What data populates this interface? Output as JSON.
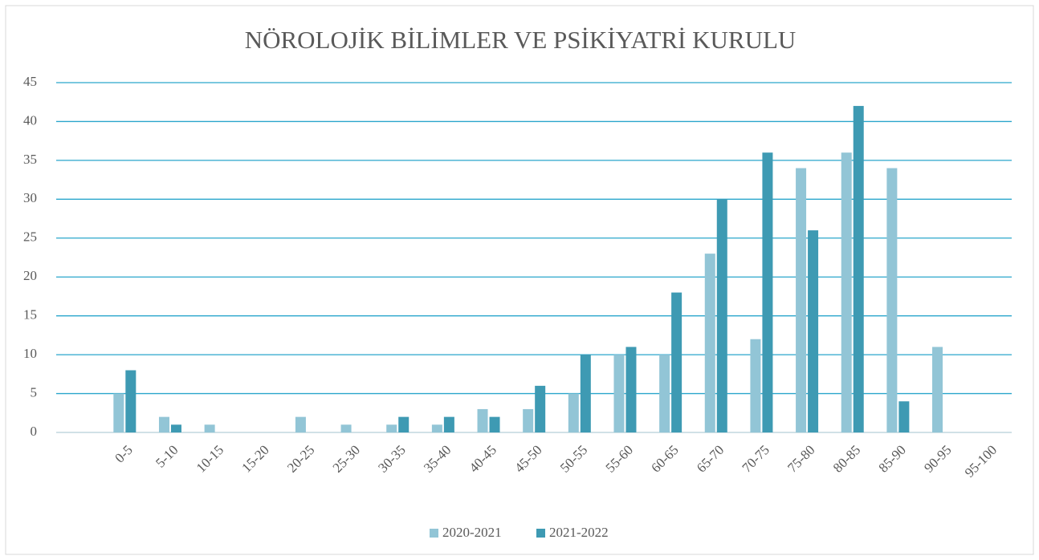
{
  "chart_data": {
    "type": "bar",
    "title": "NÖROLOJİK BİLİMLER VE PSİKİYATRİ KURULU",
    "categories": [
      "0-5",
      "5-10",
      "10-15",
      "15-20",
      "20-25",
      "25-30",
      "30-35",
      "35-40",
      "40-45",
      "45-50",
      "50-55",
      "55-60",
      "60-65",
      "65-70",
      "70-75",
      "75-80",
      "80-85",
      "85-90",
      "90-95",
      "95-100"
    ],
    "series": [
      {
        "name": "2020-2021",
        "color": "#92c5d6",
        "values": [
          5,
          2,
          1,
          0,
          2,
          1,
          1,
          1,
          3,
          3,
          5,
          10,
          10,
          23,
          12,
          34,
          36,
          34,
          11,
          0
        ]
      },
      {
        "name": "2021-2022",
        "color": "#3e9ab3",
        "values": [
          8,
          1,
          0,
          0,
          0,
          0,
          2,
          2,
          2,
          6,
          10,
          11,
          18,
          30,
          36,
          26,
          42,
          4,
          0,
          0
        ]
      }
    ],
    "ylim": [
      0,
      45
    ],
    "yticks": [
      0,
      5,
      10,
      15,
      20,
      25,
      30,
      35,
      40,
      45
    ],
    "grid": true,
    "legend": "bottom"
  }
}
